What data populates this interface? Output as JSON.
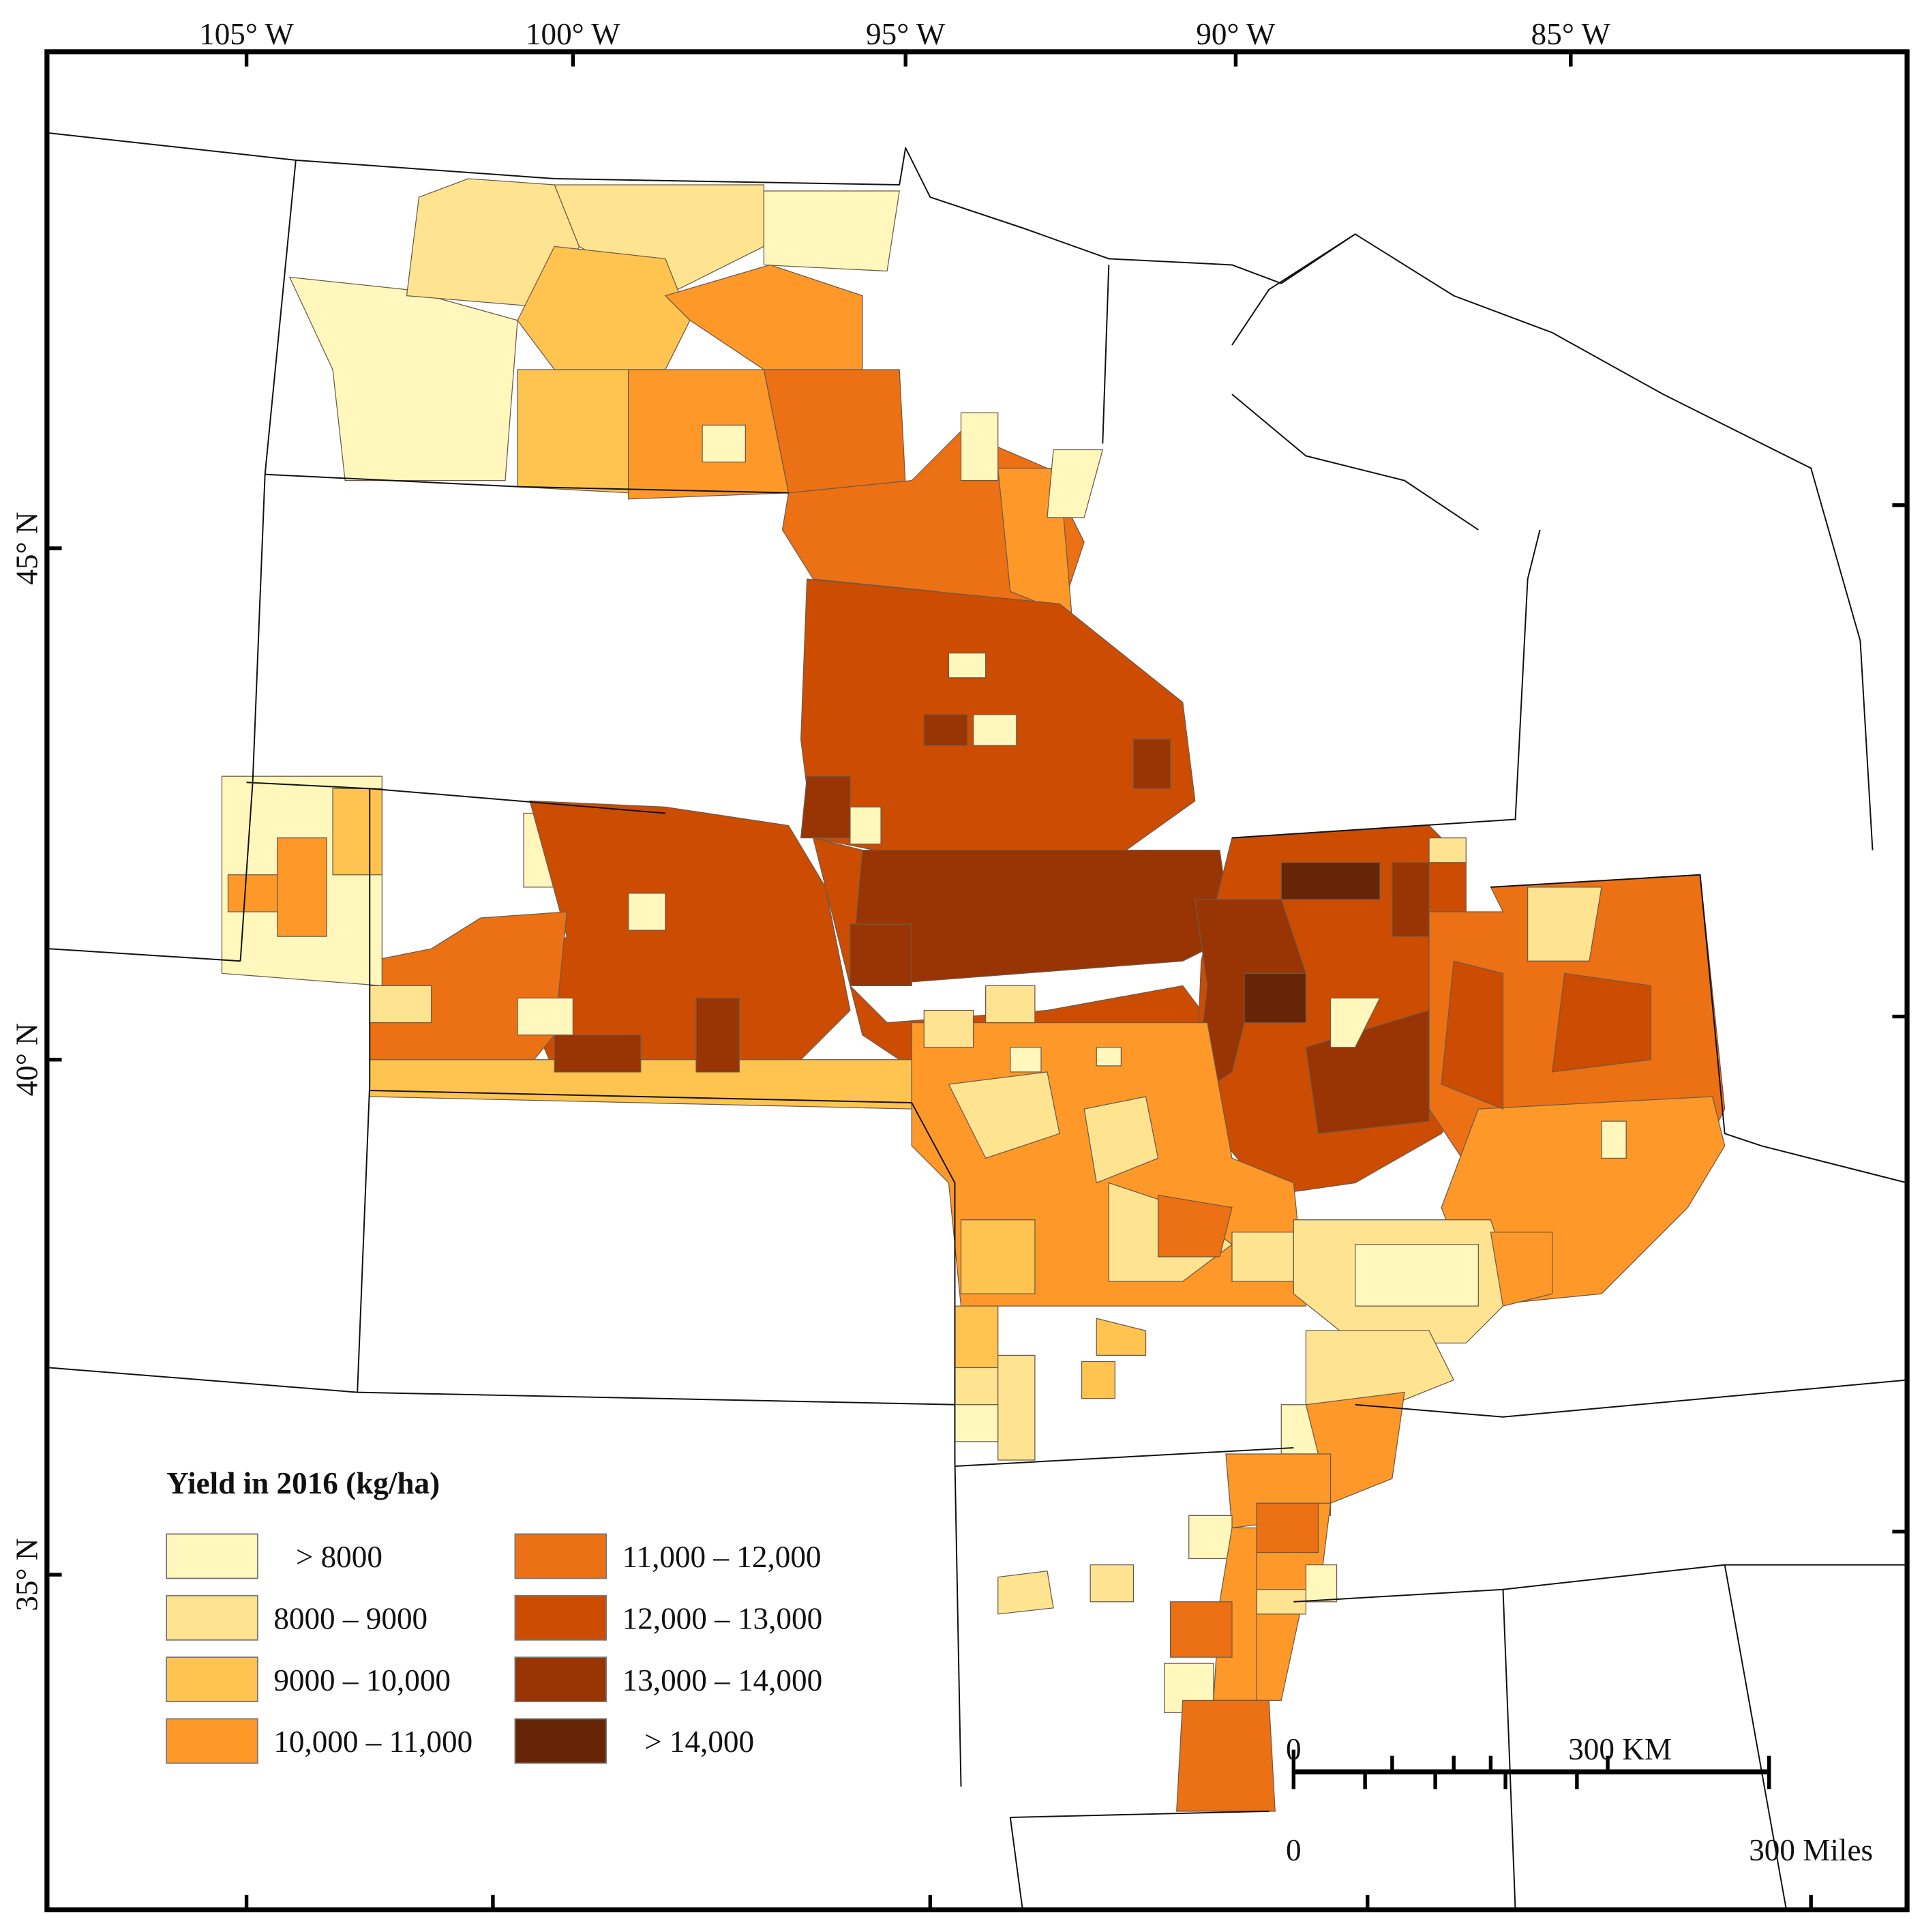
{
  "legend": {
    "title": "Yield in 2016  (kg/ha)",
    "items": [
      {
        "label": ">  8000",
        "color": "#fff7bc"
      },
      {
        "label": "8000 – 9000",
        "color": "#fee391"
      },
      {
        "label": "9000 – 10,000",
        "color": "#fec44f"
      },
      {
        "label": "10,000 – 11,000",
        "color": "#fe9929"
      },
      {
        "label": "11,000 – 12,000",
        "color": "#ec7014"
      },
      {
        "label": "12,000 – 13,000",
        "color": "#cc4c02"
      },
      {
        "label": "13,000 – 14,000",
        "color": "#993404"
      },
      {
        "label": ">  14,000",
        "color": "#662506"
      }
    ]
  },
  "graticule": {
    "longitudes": [
      "105° W",
      "100° W",
      "95° W",
      "90° W",
      "85° W"
    ],
    "latitudes": [
      "45° N",
      "40° N",
      "35° N"
    ]
  },
  "scale_bar": {
    "km_zero": "0",
    "km_label": "300 KM",
    "mi_zero": "0",
    "mi_label": "300 Miles"
  }
}
